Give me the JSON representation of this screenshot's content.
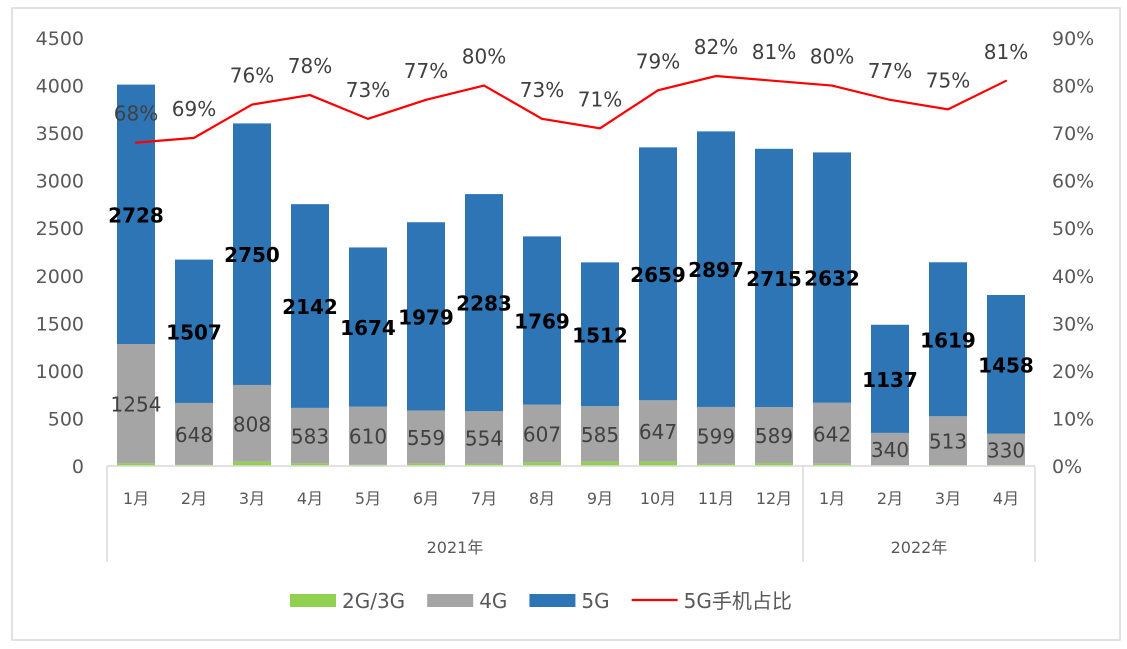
{
  "chart_data": {
    "type": "bar",
    "stacked": true,
    "groups": [
      {
        "label": "2021年",
        "categories": [
          "1月",
          "2月",
          "3月",
          "4月",
          "5月",
          "6月",
          "7月",
          "8月",
          "9月",
          "10月",
          "11月",
          "12月"
        ]
      },
      {
        "label": "2022年",
        "categories": [
          "1月",
          "2月",
          "3月",
          "4月"
        ]
      }
    ],
    "categories": [
      "1月",
      "2月",
      "3月",
      "4月",
      "5月",
      "6月",
      "7月",
      "8月",
      "9月",
      "10月",
      "11月",
      "12月",
      "1月",
      "2月",
      "3月",
      "4月"
    ],
    "series": [
      {
        "name": "2G/3G",
        "type": "bar",
        "axis": "left",
        "color": "#92d050",
        "values": [
          28,
          15,
          44,
          28,
          14,
          25,
          22,
          38,
          44,
          44,
          22,
          31,
          23,
          8,
          10,
          10
        ]
      },
      {
        "name": "4G",
        "type": "bar",
        "axis": "left",
        "color": "#a5a5a5",
        "values": [
          1254,
          648,
          808,
          583,
          610,
          559,
          554,
          607,
          585,
          647,
          599,
          589,
          642,
          340,
          513,
          330
        ]
      },
      {
        "name": "5G",
        "type": "bar",
        "axis": "left",
        "color": "#2e75b6",
        "values": [
          2728,
          1507,
          2750,
          2142,
          1674,
          1979,
          2283,
          1769,
          1512,
          2659,
          2897,
          2715,
          2632,
          1137,
          1619,
          1458
        ]
      },
      {
        "name": "5G手机占比",
        "type": "line",
        "axis": "right",
        "color": "#ff0000",
        "values": [
          68,
          69,
          76,
          78,
          73,
          77,
          80,
          73,
          71,
          79,
          82,
          81,
          80,
          77,
          75,
          81
        ]
      }
    ],
    "ylim": [
      0,
      4500
    ],
    "yticks": [
      "0",
      "500",
      "1000",
      "1500",
      "2000",
      "2500",
      "3000",
      "3500",
      "4000",
      "4500"
    ],
    "y2lim": [
      0,
      90
    ],
    "y2ticks": [
      "0%",
      "10%",
      "20%",
      "30%",
      "40%",
      "50%",
      "60%",
      "70%",
      "80%",
      "90%"
    ],
    "grid": false,
    "legend": "bottom"
  }
}
